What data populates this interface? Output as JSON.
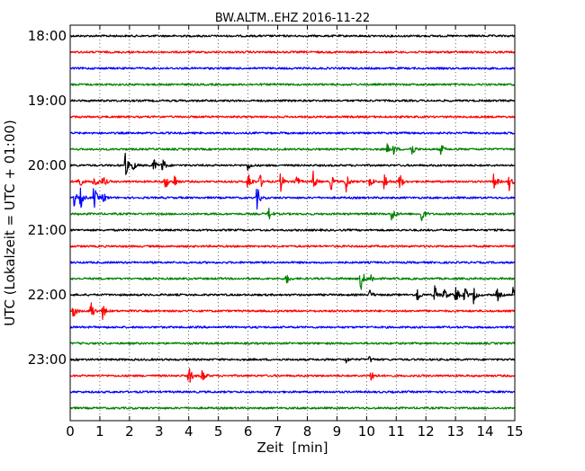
{
  "chart_data": {
    "type": "line",
    "title": "BW.ALTM..EHZ 2016-11-22",
    "xlabel": "Zeit  [min]",
    "ylabel": "UTC (Lokalzeit = UTC + 01:00)",
    "xlim": [
      0,
      15
    ],
    "x_ticks": [
      "0",
      "1",
      "2",
      "3",
      "4",
      "5",
      "6",
      "7",
      "8",
      "9",
      "10",
      "11",
      "12",
      "13",
      "14",
      "15"
    ],
    "y_ticks": [
      "18:00",
      "19:00",
      "20:00",
      "21:00",
      "22:00",
      "23:00"
    ],
    "grid": "vertical-dotted",
    "trace_interval_min": 15,
    "trace_colors": [
      "#000000",
      "#ff0000",
      "#0000ff",
      "#008000"
    ],
    "series": [
      {
        "start": "18:00",
        "color": "#000000",
        "events": []
      },
      {
        "start": "18:15",
        "color": "#ff0000",
        "events": []
      },
      {
        "start": "18:30",
        "color": "#0000ff",
        "events": []
      },
      {
        "start": "18:45",
        "color": "#008000",
        "events": []
      },
      {
        "start": "19:00",
        "color": "#000000",
        "events": []
      },
      {
        "start": "19:15",
        "color": "#ff0000",
        "events": []
      },
      {
        "start": "19:30",
        "color": "#0000ff",
        "events": []
      },
      {
        "start": "19:45",
        "color": "#008000",
        "events": [
          {
            "t": 10.7,
            "amp": 6
          },
          {
            "t": 10.9,
            "amp": 6
          },
          {
            "t": 11.5,
            "amp": 12
          },
          {
            "t": 12.5,
            "amp": 7
          }
        ]
      },
      {
        "start": "20:00",
        "color": "#000000",
        "events": [
          {
            "t": 1.85,
            "amp": 16
          },
          {
            "t": 2.1,
            "amp": 8
          },
          {
            "t": 2.8,
            "amp": 10
          },
          {
            "t": 3.1,
            "amp": 12
          },
          {
            "t": 6.0,
            "amp": 6
          }
        ]
      },
      {
        "start": "20:15",
        "color": "#ff0000",
        "events": [
          {
            "t": 0.25,
            "amp": 16
          },
          {
            "t": 0.8,
            "amp": 12
          },
          {
            "t": 1.1,
            "amp": 9
          },
          {
            "t": 3.2,
            "amp": 12
          },
          {
            "t": 3.5,
            "amp": 10
          },
          {
            "t": 6.0,
            "amp": 16
          },
          {
            "t": 6.4,
            "amp": 9
          },
          {
            "t": 7.1,
            "amp": 12
          },
          {
            "t": 7.6,
            "amp": 12
          },
          {
            "t": 8.2,
            "amp": 12
          },
          {
            "t": 8.8,
            "amp": 10
          },
          {
            "t": 9.3,
            "amp": 14
          },
          {
            "t": 10.1,
            "amp": 9
          },
          {
            "t": 10.6,
            "amp": 12
          },
          {
            "t": 11.1,
            "amp": 14
          },
          {
            "t": 14.3,
            "amp": 13
          },
          {
            "t": 14.8,
            "amp": 11
          }
        ]
      },
      {
        "start": "20:30",
        "color": "#0000ff",
        "events": [
          {
            "t": 0.1,
            "amp": 14
          },
          {
            "t": 0.35,
            "amp": 12
          },
          {
            "t": 0.8,
            "amp": 16
          },
          {
            "t": 1.1,
            "amp": 8
          },
          {
            "t": 6.3,
            "amp": 14
          }
        ]
      },
      {
        "start": "20:45",
        "color": "#008000",
        "events": [
          {
            "t": 6.7,
            "amp": 8
          },
          {
            "t": 10.85,
            "amp": 11
          },
          {
            "t": 11.85,
            "amp": 12
          }
        ]
      },
      {
        "start": "21:00",
        "color": "#000000",
        "events": []
      },
      {
        "start": "21:15",
        "color": "#ff0000",
        "events": []
      },
      {
        "start": "21:30",
        "color": "#0000ff",
        "events": []
      },
      {
        "start": "21:45",
        "color": "#008000",
        "events": [
          {
            "t": 7.3,
            "amp": 7
          },
          {
            "t": 9.8,
            "amp": 18
          },
          {
            "t": 10.15,
            "amp": 6
          }
        ]
      },
      {
        "start": "22:00",
        "color": "#000000",
        "events": [
          {
            "t": 10.1,
            "amp": 6
          },
          {
            "t": 11.7,
            "amp": 11
          },
          {
            "t": 12.3,
            "amp": 12
          },
          {
            "t": 12.6,
            "amp": 10
          },
          {
            "t": 13.0,
            "amp": 12
          },
          {
            "t": 13.3,
            "amp": 12
          },
          {
            "t": 13.6,
            "amp": 11
          },
          {
            "t": 14.4,
            "amp": 9
          },
          {
            "t": 14.95,
            "amp": 10
          }
        ]
      },
      {
        "start": "22:15",
        "color": "#ff0000",
        "events": [
          {
            "t": 0.1,
            "amp": 11
          },
          {
            "t": 0.7,
            "amp": 14
          },
          {
            "t": 1.1,
            "amp": 10
          }
        ]
      },
      {
        "start": "22:30",
        "color": "#0000ff",
        "events": []
      },
      {
        "start": "22:45",
        "color": "#008000",
        "events": []
      },
      {
        "start": "23:00",
        "color": "#000000",
        "events": [
          {
            "t": 9.3,
            "amp": 4
          },
          {
            "t": 10.1,
            "amp": 4
          }
        ]
      },
      {
        "start": "23:15",
        "color": "#ff0000",
        "events": [
          {
            "t": 4.0,
            "amp": 14
          },
          {
            "t": 4.45,
            "amp": 11
          },
          {
            "t": 10.15,
            "amp": 10
          }
        ]
      },
      {
        "start": "23:30",
        "color": "#0000ff",
        "events": []
      },
      {
        "start": "23:45",
        "color": "#008000",
        "events": []
      }
    ]
  }
}
